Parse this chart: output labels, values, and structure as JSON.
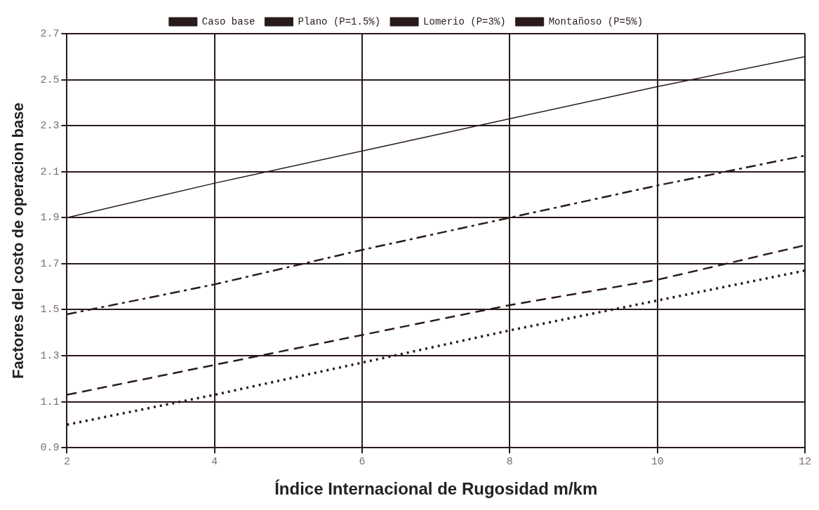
{
  "chart_data": {
    "type": "line",
    "xlabel": "Índice Internacional de Rugosidad m/km",
    "ylabel": "Factores del costo de operacion base",
    "x": [
      2,
      4,
      6,
      8,
      10,
      12
    ],
    "series": [
      {
        "name": "Caso base",
        "color": "#2a1a1a",
        "line_style": "dotted",
        "values": [
          1.0,
          1.13,
          1.27,
          1.41,
          1.54,
          1.67
        ]
      },
      {
        "name": "Plano (P=1.5%)",
        "color": "#2a1a1a",
        "line_style": "dashed",
        "values": [
          1.13,
          1.26,
          1.39,
          1.52,
          1.63,
          1.78
        ]
      },
      {
        "name": "Lomerio (P=3%)",
        "color": "#2a1a1a",
        "line_style": "dashdot",
        "values": [
          1.48,
          1.61,
          1.76,
          1.9,
          2.04,
          2.17
        ]
      },
      {
        "name": "Montañoso (P=5%)",
        "color": "#2a1a1a",
        "line_style": "solid",
        "values": [
          1.9,
          2.05,
          2.19,
          2.33,
          2.47,
          2.6
        ]
      }
    ],
    "xlim": [
      2,
      12
    ],
    "xticks": [
      2,
      4,
      6,
      8,
      10,
      12
    ],
    "ylim": [
      0.9,
      2.7
    ],
    "yticks": [
      0.9,
      1.1,
      1.3,
      1.5,
      1.7,
      1.9,
      2.1,
      2.3,
      2.5,
      2.7
    ],
    "grid": true,
    "legend": "top",
    "marker": "none"
  }
}
